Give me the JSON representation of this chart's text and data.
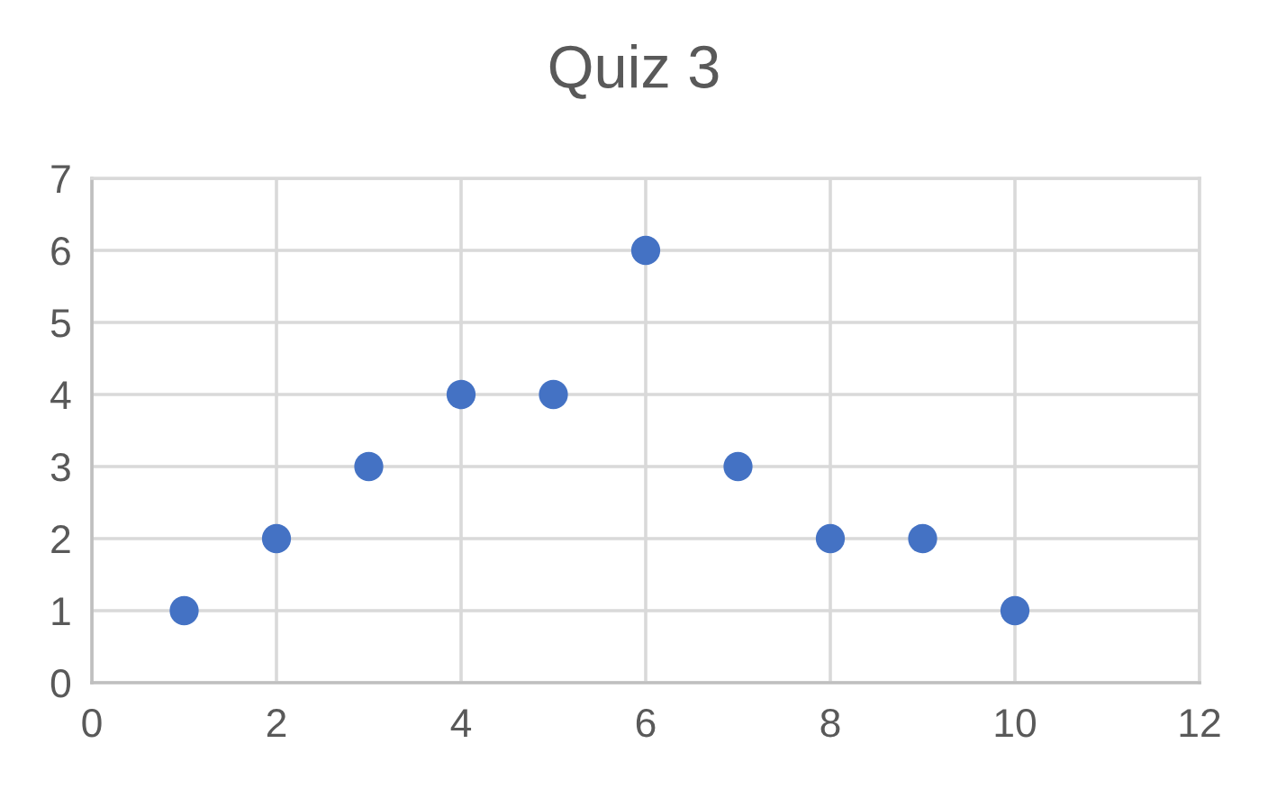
{
  "chart_data": {
    "type": "scatter",
    "title": "Quiz 3",
    "x": [
      1,
      2,
      3,
      4,
      5,
      6,
      7,
      8,
      9,
      10
    ],
    "values": [
      1,
      2,
      3,
      4,
      4,
      6,
      3,
      2,
      2,
      1
    ],
    "color": "#4472c4",
    "marker": "circle",
    "xlim": [
      0,
      12
    ],
    "ylim": [
      0,
      7
    ],
    "xticks": [
      0,
      2,
      4,
      6,
      8,
      10,
      12
    ],
    "yticks": [
      0,
      1,
      2,
      3,
      4,
      5,
      6,
      7
    ],
    "grid": true
  }
}
